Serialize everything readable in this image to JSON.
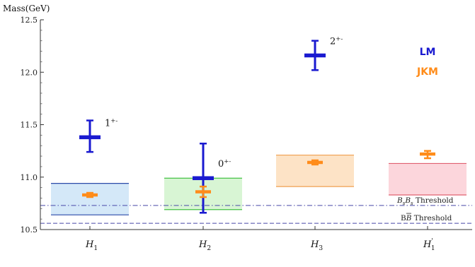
{
  "chart_data": {
    "type": "scatter",
    "ylabel": "Mass(GeV)",
    "ylim": [
      10.5,
      12.5
    ],
    "yticks": [
      "10.5",
      "11.0",
      "11.5",
      "12.0",
      "12.5"
    ],
    "categories": [
      {
        "label": "H",
        "sub": "1",
        "prime": ""
      },
      {
        "label": "H",
        "sub": "2",
        "prime": ""
      },
      {
        "label": "H",
        "sub": "3",
        "prime": ""
      },
      {
        "label": "H",
        "sub": "1",
        "prime": "'"
      }
    ],
    "legend": [
      {
        "name": "LM",
        "color": "#1a1ad0"
      },
      {
        "name": "JKM",
        "color": "#ff8c1a"
      }
    ],
    "series": [
      {
        "name": "LM",
        "color": "#1a1ad0",
        "points": [
          {
            "cat": 0,
            "y": 11.38,
            "ylow": 11.24,
            "yhigh": 11.54,
            "jpc": "1+-"
          },
          {
            "cat": 1,
            "y": 10.99,
            "ylow": 10.66,
            "yhigh": 11.32,
            "jpc": "0+-"
          },
          {
            "cat": 2,
            "y": 12.16,
            "ylow": 12.02,
            "yhigh": 12.3,
            "jpc": "2+-"
          }
        ]
      },
      {
        "name": "JKM",
        "color": "#ff8c1a",
        "points": [
          {
            "cat": 0,
            "y": 10.83,
            "ylow": 10.81,
            "yhigh": 10.85
          },
          {
            "cat": 1,
            "y": 10.86,
            "ylow": 10.81,
            "yhigh": 10.91
          },
          {
            "cat": 2,
            "y": 11.14,
            "ylow": 11.12,
            "yhigh": 11.16
          },
          {
            "cat": 3,
            "y": 11.22,
            "ylow": 11.18,
            "yhigh": 11.25
          }
        ]
      }
    ],
    "bands": [
      {
        "cat": 0,
        "ylow": 10.64,
        "yhigh": 10.94,
        "fill": "#d4e8f8",
        "edge": "#2a4aa8"
      },
      {
        "cat": 1,
        "ylow": 10.69,
        "yhigh": 10.99,
        "fill": "#d8f5d4",
        "edge": "#44c044"
      },
      {
        "cat": 2,
        "ylow": 10.91,
        "yhigh": 11.21,
        "fill": "#fde3c6",
        "edge": "#f0a050"
      },
      {
        "cat": 3,
        "ylow": 10.83,
        "yhigh": 11.13,
        "fill": "#fcd6dc",
        "edge": "#e06070"
      }
    ],
    "thresholds": [
      {
        "y": 10.73,
        "style": "dashdot",
        "label_parts": [
          "B",
          "s",
          "B",
          "s",
          " Threshold"
        ]
      },
      {
        "y": 10.56,
        "style": "dashed",
        "label_parts": [
          "B",
          "B",
          " Threshold"
        ]
      }
    ]
  }
}
